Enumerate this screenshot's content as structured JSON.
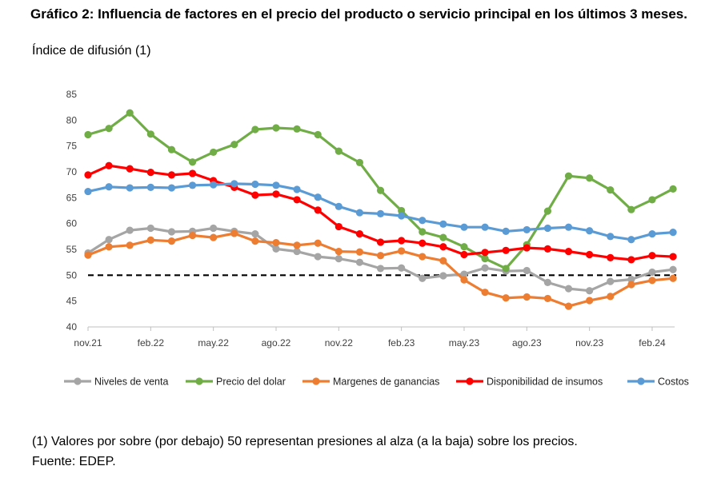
{
  "title": "Gráfico 2: Influencia de factores en el precio del producto o servicio principal en los últimos 3 meses.",
  "notes": {
    "line1": "(1) Valores por sobre (por debajo) 50 representan presiones al alza (a la baja) sobre los precios.",
    "line2": "Fuente: EDEP."
  },
  "chart_data": {
    "type": "line",
    "title": "Gráfico 2: Influencia de factores en el precio del producto o servicio principal en los últimos 3 meses.",
    "ylabel": "Índice de difusión (1)",
    "xlabel": "",
    "ylim": [
      40,
      85
    ],
    "yticks": [
      40,
      45,
      50,
      55,
      60,
      65,
      70,
      75,
      80,
      85
    ],
    "x": [
      "nov.21",
      "dic.21",
      "ene.22",
      "feb.22",
      "mar.22",
      "abr.22",
      "may.22",
      "jun.22",
      "jul.22",
      "ago.22",
      "sep.22",
      "oct.22",
      "nov.22",
      "dic.22",
      "ene.23",
      "feb.23",
      "mar.23",
      "abr.23",
      "may.23",
      "jun.23",
      "jul.23",
      "ago.23",
      "sep.23",
      "oct.23",
      "nov.23",
      "dic.23",
      "ene.24",
      "feb.24",
      "mar.24"
    ],
    "xtick_labels": [
      "nov.21",
      "feb.22",
      "may.22",
      "ago.22",
      "nov.22",
      "feb.23",
      "may.23",
      "ago.23",
      "nov.23",
      "feb.24"
    ],
    "reference_line": 50,
    "series": [
      {
        "name": "Niveles de venta",
        "color": "#a5a5a5",
        "values": [
          54.3,
          56.9,
          58.7,
          59.1,
          58.4,
          58.5,
          59.1,
          58.5,
          58.0,
          55.1,
          54.6,
          53.6,
          53.2,
          52.5,
          51.3,
          51.4,
          49.4,
          49.9,
          50.2,
          51.4,
          50.8,
          50.9,
          48.6,
          47.4,
          47.0,
          48.8,
          49.2,
          50.6,
          51.1
        ]
      },
      {
        "name": "Precio del dolar",
        "color": "#70ad47",
        "values": [
          77.2,
          78.4,
          81.4,
          77.3,
          74.3,
          71.9,
          73.8,
          75.3,
          78.2,
          78.5,
          78.3,
          77.2,
          74.0,
          71.8,
          66.4,
          62.5,
          58.4,
          57.3,
          55.5,
          53.2,
          51.3,
          55.9,
          62.4,
          69.2,
          68.8,
          66.5,
          62.7,
          64.6,
          66.7
        ]
      },
      {
        "name": "Margenes de ganancias",
        "color": "#ed7d31",
        "values": [
          53.9,
          55.5,
          55.8,
          56.8,
          56.6,
          57.7,
          57.3,
          58.1,
          56.6,
          56.3,
          55.8,
          56.2,
          54.6,
          54.5,
          53.8,
          54.7,
          53.6,
          52.8,
          49.1,
          46.7,
          45.6,
          45.8,
          45.5,
          44.0,
          45.1,
          45.9,
          48.2,
          49.0,
          49.4
        ]
      },
      {
        "name": "Disponibilidad de insumos",
        "color": "#ff0000",
        "values": [
          69.4,
          71.2,
          70.6,
          69.9,
          69.4,
          69.7,
          68.3,
          67.0,
          65.5,
          65.7,
          64.6,
          62.6,
          59.4,
          58.0,
          56.4,
          56.7,
          56.2,
          55.5,
          54.0,
          54.4,
          54.8,
          55.3,
          55.1,
          54.6,
          54.0,
          53.4,
          53.0,
          53.8,
          53.6
        ]
      },
      {
        "name": "Costos",
        "color": "#5b9bd5",
        "values": [
          66.2,
          67.1,
          66.9,
          67.0,
          66.9,
          67.4,
          67.5,
          67.7,
          67.6,
          67.4,
          66.6,
          65.1,
          63.3,
          62.1,
          61.9,
          61.5,
          60.6,
          59.9,
          59.3,
          59.3,
          58.5,
          58.8,
          59.1,
          59.3,
          58.6,
          57.5,
          56.9,
          58.0,
          58.3
        ]
      }
    ]
  }
}
